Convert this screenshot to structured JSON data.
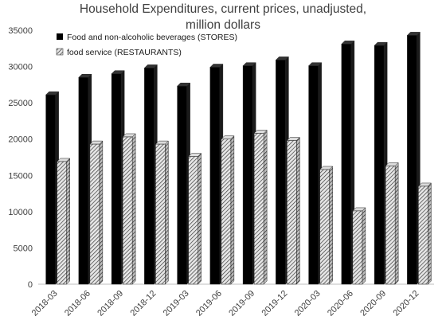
{
  "chart_data": {
    "type": "bar",
    "title_lines": [
      "Household Expenditures, current prices, unadjusted,",
      "million dollars"
    ],
    "xlabel": "",
    "ylabel": "",
    "categories": [
      "2018-03",
      "2018-06",
      "2018-09",
      "2018-12",
      "2019-03",
      "2019-06",
      "2019-09",
      "2019-12",
      "2020-03",
      "2020-06",
      "2020-09",
      "2020-12"
    ],
    "series": [
      {
        "name": "Food and non-alcoholic beverages (STORES)",
        "fill": "solid",
        "color": "#000000",
        "values": [
          26100,
          28500,
          29000,
          29800,
          27300,
          29900,
          30100,
          30900,
          30100,
          33100,
          32900,
          34300
        ]
      },
      {
        "name": "food service (RESTAURANTS)",
        "fill": "hatched",
        "color": "#7a7a7a",
        "values": [
          16900,
          19300,
          20300,
          19300,
          17600,
          20000,
          20800,
          19800,
          15800,
          10100,
          16300,
          13500
        ]
      }
    ],
    "yticks": [
      0,
      5000,
      10000,
      15000,
      20000,
      25000,
      30000,
      35000
    ],
    "ylim": [
      0,
      35000
    ],
    "grid": false,
    "legend_position": "top-left"
  }
}
